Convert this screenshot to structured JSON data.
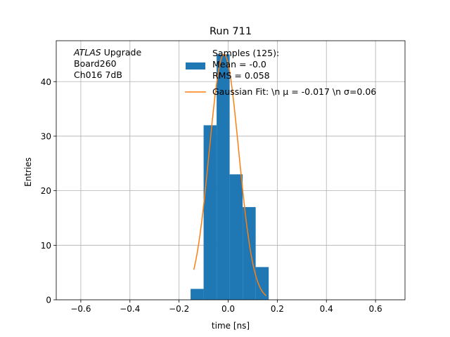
{
  "chart_data": {
    "type": "bar",
    "title": "Run 711",
    "xlabel": "time [ns]",
    "ylabel": "Entries",
    "xlim": [
      -0.7,
      0.72
    ],
    "ylim": [
      0,
      47.5
    ],
    "grid": true,
    "xticks": [
      -0.6,
      -0.4,
      -0.2,
      0.0,
      0.2,
      0.4,
      0.6
    ],
    "xtick_labels": [
      "−0.6",
      "−0.4",
      "−0.2",
      "0.0",
      "0.2",
      "0.4",
      "0.6"
    ],
    "yticks": [
      0,
      10,
      20,
      30,
      40
    ],
    "ytick_labels": [
      "0",
      "10",
      "20",
      "30",
      "40"
    ],
    "bin_edges": [
      -0.153,
      -0.1,
      -0.047,
      0.006,
      0.059,
      0.112,
      0.165
    ],
    "bin_counts": [
      2,
      32,
      45,
      23,
      17,
      6
    ],
    "series_colors": [
      "#1f77b4",
      "#ff7f0e"
    ],
    "fit": {
      "mu": -0.017,
      "sigma": 0.06,
      "amplitude": 45,
      "x_range": [
        -0.14,
        0.155
      ]
    },
    "annotation": {
      "lines": [
        {
          "italic": "ATLAS",
          "text": " Upgrade"
        },
        {
          "italic": "",
          "text": " Board260"
        },
        {
          "italic": "",
          "text": " Ch016 7dB"
        }
      ]
    },
    "legend": {
      "position": "top-right",
      "entries": [
        {
          "lines": [
            "Samples (125):",
            " Mean = -0.0",
            " RMS = 0.058"
          ]
        },
        {
          "lines": [
            "Gaussian Fit: \\n μ = -0.017 \\n σ=0.06"
          ]
        }
      ]
    }
  }
}
